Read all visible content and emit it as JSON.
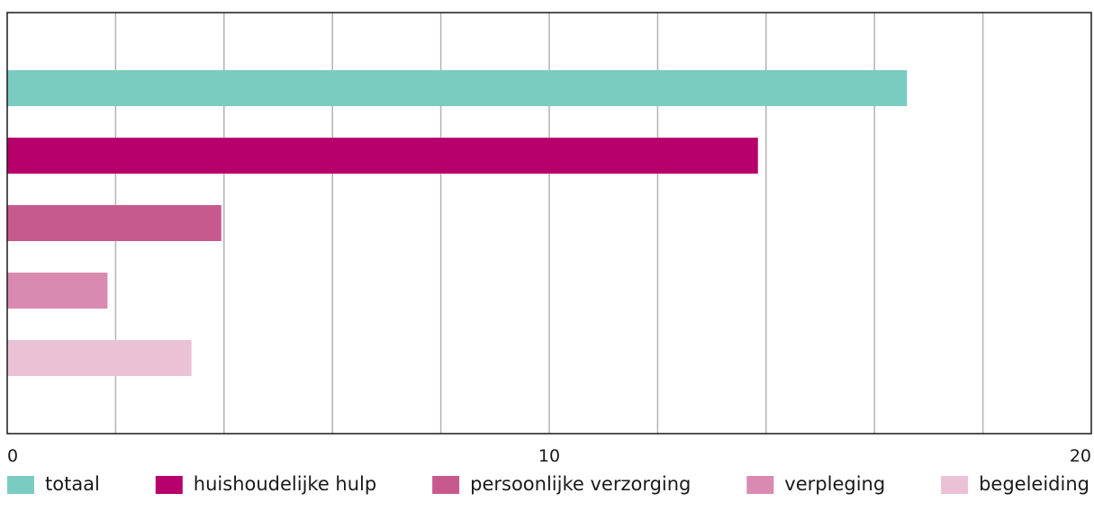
{
  "chart_data": {
    "type": "bar",
    "orientation": "horizontal",
    "title": "",
    "xlabel": "",
    "ylabel": "",
    "xlim": [
      0,
      20
    ],
    "x_ticks": [
      0,
      10,
      20
    ],
    "x_gridline_step": 2,
    "grid": true,
    "legend_position": "bottom",
    "categories": [
      "totaal",
      "huishoudelijke hulp",
      "persoonlijke verzorging",
      "verpleging",
      "begeleiding"
    ],
    "values": [
      16.6,
      13.85,
      3.95,
      1.85,
      3.4
    ],
    "colors": [
      "#7accc0",
      "#b8006d",
      "#c75a8c",
      "#d98ab0",
      "#ebc2d5"
    ]
  }
}
